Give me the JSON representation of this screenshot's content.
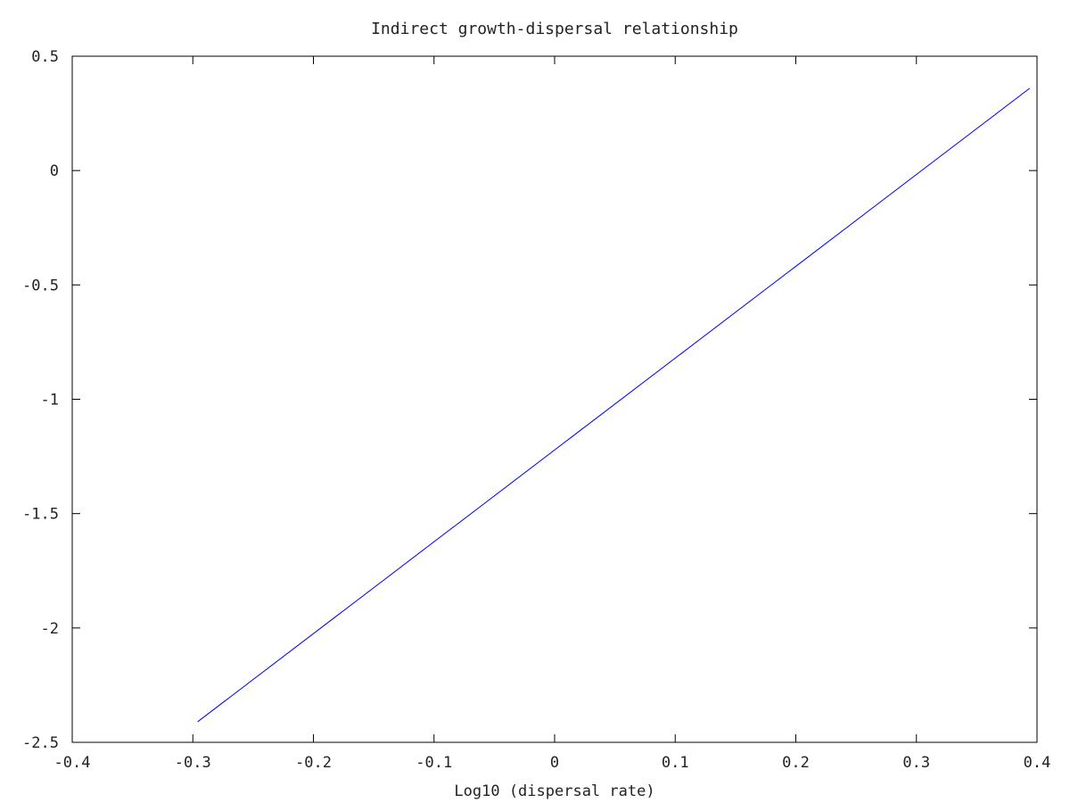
{
  "chart_data": {
    "type": "line",
    "title": "Indirect growth-dispersal relationship",
    "xlabel": "Log10 (dispersal rate)",
    "ylabel": "",
    "xlim": [
      -0.4,
      0.4
    ],
    "ylim": [
      -2.5,
      0.5
    ],
    "x_ticks": [
      -0.4,
      -0.3,
      -0.2,
      -0.1,
      0,
      0.1,
      0.2,
      0.3,
      0.4
    ],
    "x_tick_labels": [
      "-0.4",
      "-0.3",
      "-0.2",
      "-0.1",
      "0",
      "0.1",
      "0.2",
      "0.3",
      "0.4"
    ],
    "y_ticks": [
      0.5,
      0,
      -0.5,
      -1,
      -1.5,
      -2,
      -2.5
    ],
    "y_tick_labels": [
      "0.5",
      "0",
      "-0.5",
      "-1",
      "-1.5",
      "-2",
      "-2.5"
    ],
    "grid": false,
    "series": [
      {
        "color": "#0000ff",
        "x": [
          -0.296,
          0.394
        ],
        "y": [
          -2.41,
          0.36
        ]
      }
    ]
  }
}
